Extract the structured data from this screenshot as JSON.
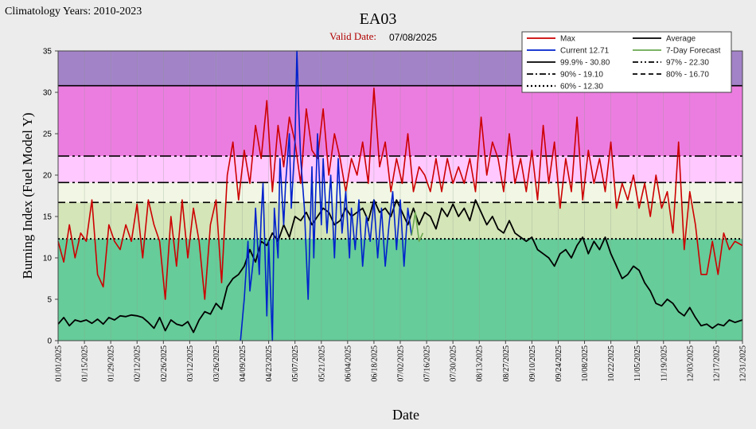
{
  "chart_data": {
    "type": "line",
    "title": "EA03",
    "climatology_label": "Climatology Years: 2010-2023",
    "valid_date_label": "Valid Date:",
    "valid_date": "07/08/2025",
    "xlabel": "Date",
    "ylabel": "Burning Index (Fuel Model Y)",
    "ylim": [
      0,
      35
    ],
    "yticks": [
      "0",
      "5",
      "10",
      "15",
      "20",
      "25",
      "30",
      "35"
    ],
    "xlim": [
      "2025-01-01",
      "2025-12-31"
    ],
    "xticks": [
      "01/01/2025",
      "01/15/2025",
      "01/29/2025",
      "02/12/2025",
      "02/26/2025",
      "03/12/2025",
      "03/26/2025",
      "04/09/2025",
      "04/23/2025",
      "05/07/2025",
      "05/21/2025",
      "06/04/2025",
      "06/18/2025",
      "07/02/2025",
      "07/16/2025",
      "07/30/2025",
      "08/13/2025",
      "08/27/2025",
      "09/10/2025",
      "09/24/2025",
      "10/08/2025",
      "10/22/2025",
      "11/05/2025",
      "11/19/2025",
      "12/03/2025",
      "12/17/2025",
      "12/31/2025"
    ],
    "bands": [
      {
        "from": 0,
        "to": 12.3,
        "color": "#66cc99"
      },
      {
        "from": 12.3,
        "to": 16.7,
        "color": "#d4e5b8"
      },
      {
        "from": 16.7,
        "to": 19.1,
        "color": "#f1f7e4"
      },
      {
        "from": 19.1,
        "to": 22.3,
        "color": "#ffc8ff"
      },
      {
        "from": 22.3,
        "to": 30.8,
        "color": "#ec7de0"
      },
      {
        "from": 30.8,
        "to": 35,
        "color": "#a383c8"
      }
    ],
    "legend": {
      "placement": "top-right",
      "entries": [
        {
          "label": "Max",
          "color": "#cc0000",
          "dash": "solid"
        },
        {
          "label": "Average",
          "color": "#000000",
          "dash": "solid"
        },
        {
          "label": "Current 12.71",
          "color": "#0022cc",
          "dash": "solid"
        },
        {
          "label": "7-Day Forecast",
          "color": "#6aa84f",
          "dash": "solid"
        },
        {
          "label": "99.9% -  30.80",
          "color": "#000000",
          "dash": "solid"
        },
        {
          "label": "97% -  22.30",
          "color": "#000000",
          "dash": "dashdotdot"
        },
        {
          "label": "90% -  19.10",
          "color": "#000000",
          "dash": "dashdot"
        },
        {
          "label": "80% -  16.70",
          "color": "#000000",
          "dash": "dashed"
        },
        {
          "label": "60%  - 12.30",
          "color": "#000000",
          "dash": "dotted"
        }
      ]
    },
    "thresholds": [
      {
        "value": 30.8,
        "dash": "solid"
      },
      {
        "value": 22.3,
        "dash": "dashdotdot"
      },
      {
        "value": 19.1,
        "dash": "dashdot"
      },
      {
        "value": 16.7,
        "dash": "dashed"
      },
      {
        "value": 12.3,
        "dash": "dotted"
      }
    ],
    "series": [
      {
        "name": "Max",
        "color": "#cc0000",
        "x": [
          "2025-01-01",
          "2025-01-04",
          "2025-01-07",
          "2025-01-10",
          "2025-01-13",
          "2025-01-16",
          "2025-01-19",
          "2025-01-22",
          "2025-01-25",
          "2025-01-28",
          "2025-01-31",
          "2025-02-03",
          "2025-02-06",
          "2025-02-09",
          "2025-02-12",
          "2025-02-15",
          "2025-02-18",
          "2025-02-21",
          "2025-02-24",
          "2025-02-27",
          "2025-03-02",
          "2025-03-05",
          "2025-03-08",
          "2025-03-11",
          "2025-03-14",
          "2025-03-17",
          "2025-03-20",
          "2025-03-23",
          "2025-03-26",
          "2025-03-29",
          "2025-04-01",
          "2025-04-04",
          "2025-04-07",
          "2025-04-10",
          "2025-04-13",
          "2025-04-16",
          "2025-04-19",
          "2025-04-22",
          "2025-04-25",
          "2025-04-28",
          "2025-05-01",
          "2025-05-04",
          "2025-05-07",
          "2025-05-10",
          "2025-05-13",
          "2025-05-16",
          "2025-05-19",
          "2025-05-22",
          "2025-05-25",
          "2025-05-28",
          "2025-05-31",
          "2025-06-03",
          "2025-06-06",
          "2025-06-09",
          "2025-06-12",
          "2025-06-15",
          "2025-06-18",
          "2025-06-21",
          "2025-06-24",
          "2025-06-27",
          "2025-06-30",
          "2025-07-03",
          "2025-07-06",
          "2025-07-09",
          "2025-07-12",
          "2025-07-15",
          "2025-07-18",
          "2025-07-21",
          "2025-07-24",
          "2025-07-27",
          "2025-07-30",
          "2025-08-02",
          "2025-08-05",
          "2025-08-08",
          "2025-08-11",
          "2025-08-14",
          "2025-08-17",
          "2025-08-20",
          "2025-08-23",
          "2025-08-26",
          "2025-08-29",
          "2025-09-01",
          "2025-09-04",
          "2025-09-07",
          "2025-09-10",
          "2025-09-13",
          "2025-09-16",
          "2025-09-19",
          "2025-09-22",
          "2025-09-25",
          "2025-09-28",
          "2025-10-01",
          "2025-10-04",
          "2025-10-07",
          "2025-10-10",
          "2025-10-13",
          "2025-10-16",
          "2025-10-19",
          "2025-10-22",
          "2025-10-25",
          "2025-10-28",
          "2025-10-31",
          "2025-11-03",
          "2025-11-06",
          "2025-11-09",
          "2025-11-12",
          "2025-11-15",
          "2025-11-18",
          "2025-11-21",
          "2025-11-24",
          "2025-11-27",
          "2025-11-30",
          "2025-12-03",
          "2025-12-06",
          "2025-12-09",
          "2025-12-12",
          "2025-12-15",
          "2025-12-18",
          "2025-12-21",
          "2025-12-24",
          "2025-12-27",
          "2025-12-31"
        ],
        "values": [
          12,
          9.5,
          14,
          10,
          13,
          12,
          17,
          8,
          6.5,
          14,
          12,
          11,
          14,
          12,
          16.5,
          10,
          17,
          14,
          12,
          5,
          15,
          9,
          17,
          10,
          16,
          12,
          5,
          14,
          17,
          7,
          20,
          24,
          17,
          23,
          19,
          26,
          22,
          29,
          18,
          26,
          21,
          27,
          24,
          19,
          28,
          23,
          22,
          28,
          20,
          25,
          22,
          18,
          22,
          20,
          24,
          19,
          30.5,
          21,
          24,
          18,
          22,
          19,
          25,
          18,
          21,
          20,
          18,
          22,
          18,
          22,
          19,
          21,
          19,
          22,
          18,
          27,
          20,
          24,
          22,
          18,
          25,
          19,
          22,
          18,
          23,
          17,
          26,
          19,
          24,
          16,
          22,
          18,
          27,
          17,
          23,
          19,
          22,
          18,
          24,
          16,
          19,
          17,
          20,
          16,
          19,
          15,
          20,
          16,
          18,
          13,
          24,
          11,
          18,
          14,
          8,
          8,
          12,
          8,
          13,
          11,
          12,
          11.5
        ]
      },
      {
        "name": "Average",
        "color": "#000000",
        "x": [
          "2025-01-01",
          "2025-01-04",
          "2025-01-07",
          "2025-01-10",
          "2025-01-13",
          "2025-01-16",
          "2025-01-19",
          "2025-01-22",
          "2025-01-25",
          "2025-01-28",
          "2025-01-31",
          "2025-02-03",
          "2025-02-06",
          "2025-02-09",
          "2025-02-12",
          "2025-02-15",
          "2025-02-18",
          "2025-02-21",
          "2025-02-24",
          "2025-02-27",
          "2025-03-02",
          "2025-03-05",
          "2025-03-08",
          "2025-03-11",
          "2025-03-14",
          "2025-03-17",
          "2025-03-20",
          "2025-03-23",
          "2025-03-26",
          "2025-03-29",
          "2025-04-01",
          "2025-04-04",
          "2025-04-07",
          "2025-04-10",
          "2025-04-13",
          "2025-04-16",
          "2025-04-19",
          "2025-04-22",
          "2025-04-25",
          "2025-04-28",
          "2025-05-01",
          "2025-05-04",
          "2025-05-07",
          "2025-05-10",
          "2025-05-13",
          "2025-05-16",
          "2025-05-19",
          "2025-05-22",
          "2025-05-25",
          "2025-05-28",
          "2025-05-31",
          "2025-06-03",
          "2025-06-06",
          "2025-06-09",
          "2025-06-12",
          "2025-06-15",
          "2025-06-18",
          "2025-06-21",
          "2025-06-24",
          "2025-06-27",
          "2025-06-30",
          "2025-07-03",
          "2025-07-06",
          "2025-07-09",
          "2025-07-12",
          "2025-07-15",
          "2025-07-18",
          "2025-07-21",
          "2025-07-24",
          "2025-07-27",
          "2025-07-30",
          "2025-08-02",
          "2025-08-05",
          "2025-08-08",
          "2025-08-11",
          "2025-08-14",
          "2025-08-17",
          "2025-08-20",
          "2025-08-23",
          "2025-08-26",
          "2025-08-29",
          "2025-09-01",
          "2025-09-04",
          "2025-09-07",
          "2025-09-10",
          "2025-09-13",
          "2025-09-16",
          "2025-09-19",
          "2025-09-22",
          "2025-09-25",
          "2025-09-28",
          "2025-10-01",
          "2025-10-04",
          "2025-10-07",
          "2025-10-10",
          "2025-10-13",
          "2025-10-16",
          "2025-10-19",
          "2025-10-22",
          "2025-10-25",
          "2025-10-28",
          "2025-10-31",
          "2025-11-03",
          "2025-11-06",
          "2025-11-09",
          "2025-11-12",
          "2025-11-15",
          "2025-11-18",
          "2025-11-21",
          "2025-11-24",
          "2025-11-27",
          "2025-11-30",
          "2025-12-03",
          "2025-12-06",
          "2025-12-09",
          "2025-12-12",
          "2025-12-15",
          "2025-12-18",
          "2025-12-21",
          "2025-12-24",
          "2025-12-27",
          "2025-12-31"
        ],
        "values": [
          2,
          2.8,
          1.8,
          2.5,
          2.3,
          2.5,
          2.1,
          2.6,
          2,
          2.8,
          2.5,
          3,
          2.9,
          3.1,
          3,
          2.8,
          2.2,
          1.5,
          2.8,
          1.2,
          2.5,
          2,
          1.8,
          2.3,
          1,
          2.5,
          3.5,
          3.2,
          4.5,
          3.8,
          6.5,
          7.5,
          8,
          9,
          11,
          9.5,
          12,
          11.5,
          13,
          12,
          14,
          12.5,
          15,
          14.5,
          15.5,
          14,
          15,
          16,
          15.5,
          14,
          14.5,
          16,
          15,
          15.5,
          16,
          14.5,
          17,
          15.5,
          16,
          15,
          17,
          15.5,
          14,
          16,
          14,
          15.5,
          15,
          13.5,
          16,
          15,
          16.5,
          15,
          16,
          14.5,
          17,
          15.5,
          14,
          15,
          13.5,
          13,
          14.5,
          13,
          12.5,
          12,
          12.5,
          11,
          10.5,
          10,
          9,
          10.5,
          11,
          10,
          11.5,
          12.5,
          10.5,
          12,
          11,
          12.5,
          10.5,
          9,
          7.5,
          8,
          9,
          8.5,
          7,
          6,
          4.5,
          4.2,
          5,
          4.5,
          3.5,
          3,
          4,
          2.8,
          1.8,
          2,
          1.5,
          2,
          1.8,
          2.5,
          2.2,
          2.5
        ]
      },
      {
        "name": "Current 12.71",
        "color": "#0022cc",
        "x": [
          "2025-04-08",
          "2025-04-10",
          "2025-04-12",
          "2025-04-13",
          "2025-04-15",
          "2025-04-16",
          "2025-04-18",
          "2025-04-19",
          "2025-04-20",
          "2025-04-22",
          "2025-04-23",
          "2025-04-25",
          "2025-04-26",
          "2025-04-28",
          "2025-04-29",
          "2025-05-01",
          "2025-05-02",
          "2025-05-04",
          "2025-05-05",
          "2025-05-07",
          "2025-05-08",
          "2025-05-09",
          "2025-05-10",
          "2025-05-12",
          "2025-05-14",
          "2025-05-16",
          "2025-05-17",
          "2025-05-19",
          "2025-05-21",
          "2025-05-22",
          "2025-05-24",
          "2025-05-26",
          "2025-05-28",
          "2025-05-30",
          "2025-06-01",
          "2025-06-03",
          "2025-06-05",
          "2025-06-06",
          "2025-06-08",
          "2025-06-10",
          "2025-06-12",
          "2025-06-14",
          "2025-06-16",
          "2025-06-18",
          "2025-06-20",
          "2025-06-22",
          "2025-06-24",
          "2025-06-26",
          "2025-06-28",
          "2025-06-30",
          "2025-07-02",
          "2025-07-04",
          "2025-07-06",
          "2025-07-08"
        ],
        "values": [
          0,
          5,
          12,
          6,
          10,
          16,
          8,
          15,
          19,
          3,
          12,
          0,
          16,
          10,
          22,
          14,
          19,
          25,
          16,
          24,
          35,
          28,
          22,
          16,
          5,
          21,
          10,
          25,
          14,
          22,
          13,
          20,
          10,
          22,
          13,
          18,
          10,
          16,
          11,
          17,
          9,
          15,
          12,
          17,
          10,
          16,
          9,
          14,
          18,
          11,
          17,
          9,
          16,
          12.7
        ]
      },
      {
        "name": "7-Day Forecast",
        "color": "#6aa84f",
        "x": [
          "2025-07-08",
          "2025-07-10",
          "2025-07-12",
          "2025-07-14"
        ],
        "values": [
          12.7,
          15.5,
          12,
          13
        ]
      }
    ]
  }
}
